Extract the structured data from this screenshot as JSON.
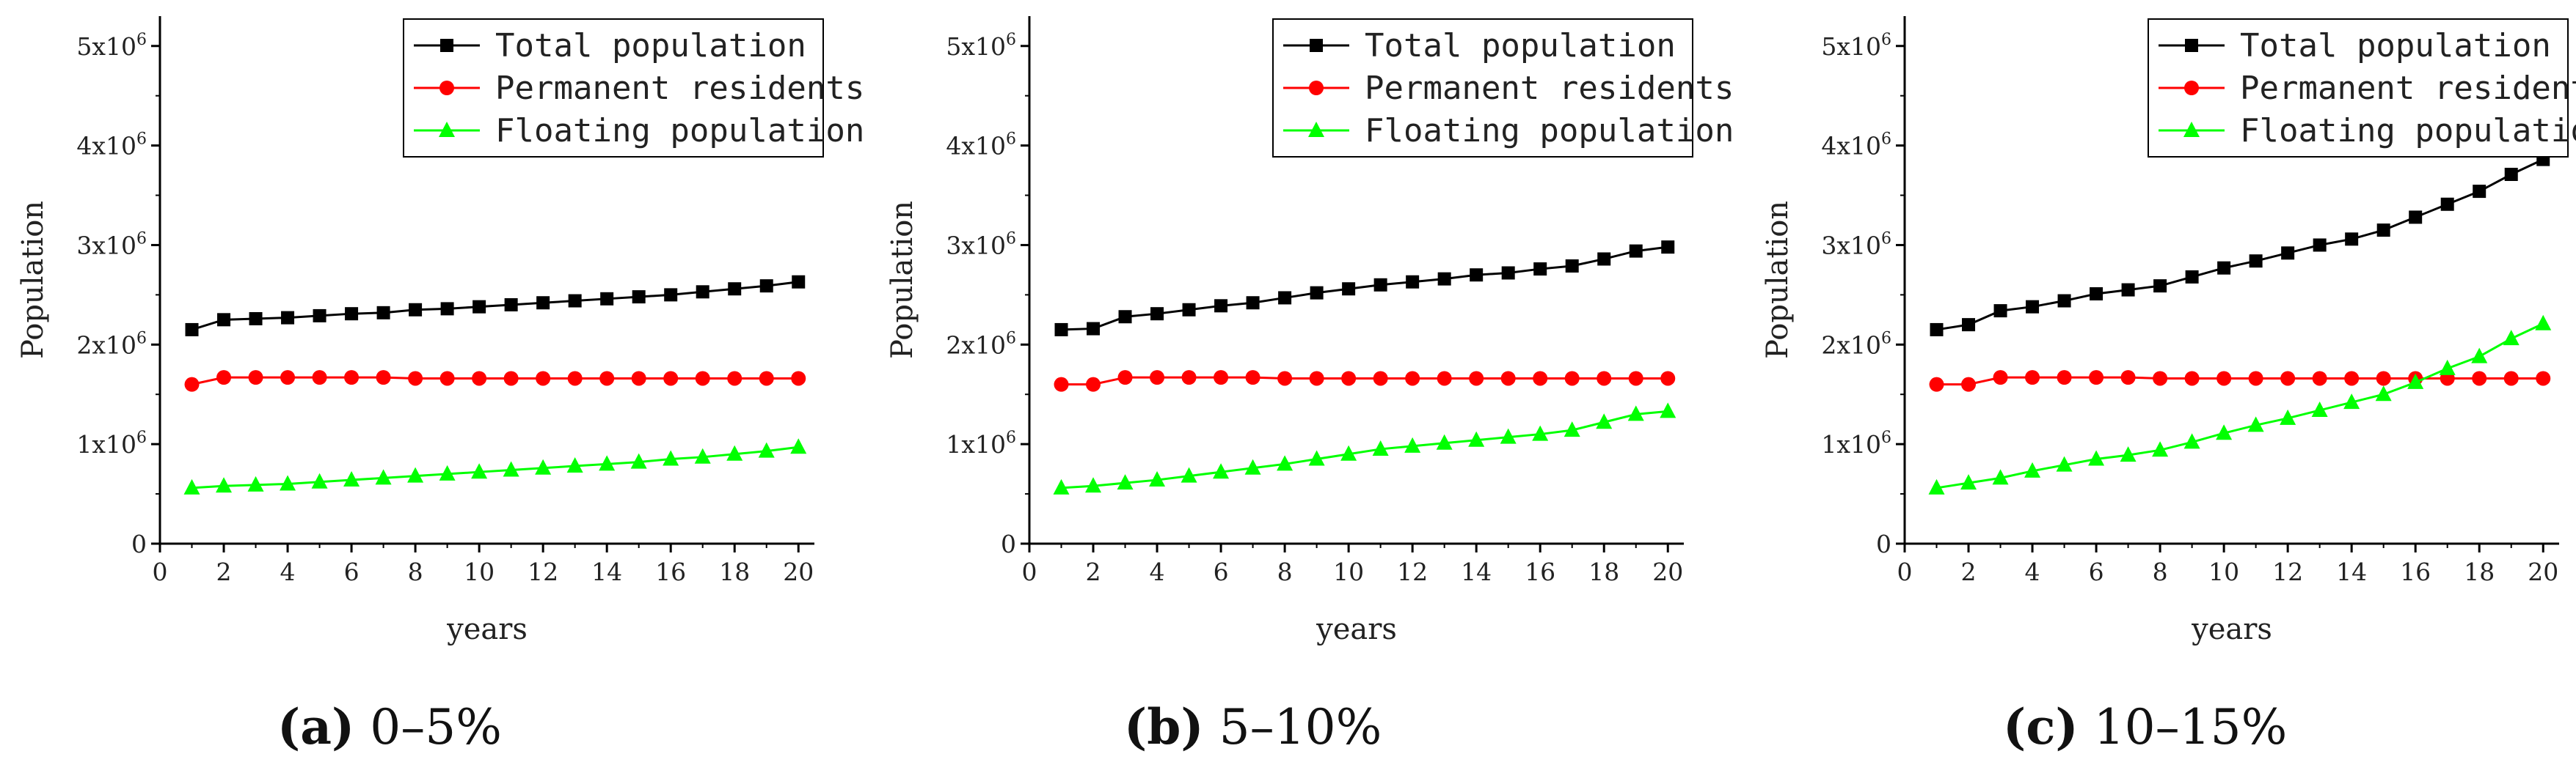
{
  "figure_captions": [
    {
      "tag": "(a)",
      "text": " 0–5%"
    },
    {
      "tag": "(b)",
      "text": " 5–10%"
    },
    {
      "tag": "(c)",
      "text": " 10–15%"
    }
  ],
  "colors": {
    "total": "#000000",
    "permanent": "#ff0000",
    "floating": "#00ff00",
    "axis": "#000000"
  },
  "chart_data": [
    {
      "type": "line",
      "title": "",
      "caption": "(a) 0–5%",
      "xlabel": "years",
      "ylabel": "Population",
      "xlim": [
        0,
        20.5
      ],
      "ylim": [
        0,
        5300000
      ],
      "xticks": [
        0,
        2,
        4,
        6,
        8,
        10,
        12,
        14,
        16,
        18,
        20
      ],
      "ytick_labels": [
        "0",
        "1x10",
        "2x10",
        "3x10",
        "4x10",
        "5x10"
      ],
      "ytick_exponent": "6",
      "ytick_values": [
        0,
        1000000,
        2000000,
        3000000,
        4000000,
        5000000
      ],
      "legend_position": "top-right",
      "x": [
        1,
        2,
        3,
        4,
        5,
        6,
        7,
        8,
        9,
        10,
        11,
        12,
        13,
        14,
        15,
        16,
        17,
        18,
        19,
        20
      ],
      "series": [
        {
          "name": "Total population",
          "key": "total",
          "marker": "square",
          "values": [
            2150000,
            2250000,
            2260000,
            2270000,
            2290000,
            2310000,
            2320000,
            2350000,
            2360000,
            2380000,
            2400000,
            2420000,
            2440000,
            2460000,
            2480000,
            2500000,
            2530000,
            2560000,
            2590000,
            2630000
          ]
        },
        {
          "name": "Permanent residents",
          "key": "permanent",
          "marker": "circle",
          "values": [
            1600000,
            1670000,
            1670000,
            1670000,
            1670000,
            1670000,
            1670000,
            1660000,
            1660000,
            1660000,
            1660000,
            1660000,
            1660000,
            1660000,
            1660000,
            1660000,
            1660000,
            1660000,
            1660000,
            1660000
          ]
        },
        {
          "name": "Floating population",
          "key": "floating",
          "marker": "triangle",
          "values": [
            560000,
            580000,
            590000,
            600000,
            620000,
            640000,
            660000,
            680000,
            700000,
            720000,
            740000,
            760000,
            780000,
            800000,
            820000,
            850000,
            870000,
            900000,
            930000,
            970000
          ]
        }
      ]
    },
    {
      "type": "line",
      "title": "",
      "caption": "(b) 5–10%",
      "xlabel": "years",
      "ylabel": "Population",
      "xlim": [
        0,
        20.5
      ],
      "ylim": [
        0,
        5300000
      ],
      "xticks": [
        0,
        2,
        4,
        6,
        8,
        10,
        12,
        14,
        16,
        18,
        20
      ],
      "ytick_labels": [
        "0",
        "1x10",
        "2x10",
        "3x10",
        "4x10",
        "5x10"
      ],
      "ytick_exponent": "6",
      "ytick_values": [
        0,
        1000000,
        2000000,
        3000000,
        4000000,
        5000000
      ],
      "legend_position": "top-right",
      "x": [
        1,
        2,
        3,
        4,
        5,
        6,
        7,
        8,
        9,
        10,
        11,
        12,
        13,
        14,
        15,
        16,
        17,
        18,
        19,
        20
      ],
      "series": [
        {
          "name": "Total population",
          "key": "total",
          "marker": "square",
          "values": [
            2150000,
            2160000,
            2280000,
            2310000,
            2350000,
            2390000,
            2420000,
            2470000,
            2520000,
            2560000,
            2600000,
            2630000,
            2660000,
            2700000,
            2720000,
            2760000,
            2790000,
            2860000,
            2940000,
            2980000
          ]
        },
        {
          "name": "Permanent residents",
          "key": "permanent",
          "marker": "circle",
          "values": [
            1600000,
            1600000,
            1670000,
            1670000,
            1670000,
            1670000,
            1670000,
            1660000,
            1660000,
            1660000,
            1660000,
            1660000,
            1660000,
            1660000,
            1660000,
            1660000,
            1660000,
            1660000,
            1660000,
            1660000
          ]
        },
        {
          "name": "Floating population",
          "key": "floating",
          "marker": "triangle",
          "values": [
            560000,
            580000,
            610000,
            640000,
            680000,
            720000,
            760000,
            800000,
            850000,
            900000,
            950000,
            980000,
            1010000,
            1040000,
            1070000,
            1100000,
            1140000,
            1220000,
            1300000,
            1330000
          ]
        }
      ]
    },
    {
      "type": "line",
      "title": "",
      "caption": "(c) 10–15%",
      "xlabel": "years",
      "ylabel": "Population",
      "xlim": [
        0,
        20.5
      ],
      "ylim": [
        0,
        5300000
      ],
      "xticks": [
        0,
        2,
        4,
        6,
        8,
        10,
        12,
        14,
        16,
        18,
        20
      ],
      "ytick_labels": [
        "0",
        "1x10",
        "2x10",
        "3x10",
        "4x10",
        "5x10"
      ],
      "ytick_exponent": "6",
      "ytick_values": [
        0,
        1000000,
        2000000,
        3000000,
        4000000,
        5000000
      ],
      "legend_position": "top-right",
      "x": [
        1,
        2,
        3,
        4,
        5,
        6,
        7,
        8,
        9,
        10,
        11,
        12,
        13,
        14,
        15,
        16,
        17,
        18,
        19,
        20
      ],
      "series": [
        {
          "name": "Total population",
          "key": "total",
          "marker": "square",
          "values": [
            2150000,
            2200000,
            2340000,
            2380000,
            2440000,
            2510000,
            2550000,
            2590000,
            2680000,
            2770000,
            2840000,
            2920000,
            3000000,
            3060000,
            3150000,
            3280000,
            3410000,
            3540000,
            3710000,
            3860000
          ]
        },
        {
          "name": "Permanent residents",
          "key": "permanent",
          "marker": "circle",
          "values": [
            1600000,
            1600000,
            1670000,
            1670000,
            1670000,
            1670000,
            1670000,
            1660000,
            1660000,
            1660000,
            1660000,
            1660000,
            1660000,
            1660000,
            1660000,
            1660000,
            1660000,
            1660000,
            1660000,
            1660000
          ]
        },
        {
          "name": "Floating population",
          "key": "floating",
          "marker": "triangle",
          "values": [
            560000,
            610000,
            660000,
            730000,
            790000,
            850000,
            890000,
            940000,
            1020000,
            1110000,
            1190000,
            1260000,
            1340000,
            1420000,
            1500000,
            1620000,
            1760000,
            1880000,
            2060000,
            2210000
          ]
        }
      ]
    }
  ]
}
